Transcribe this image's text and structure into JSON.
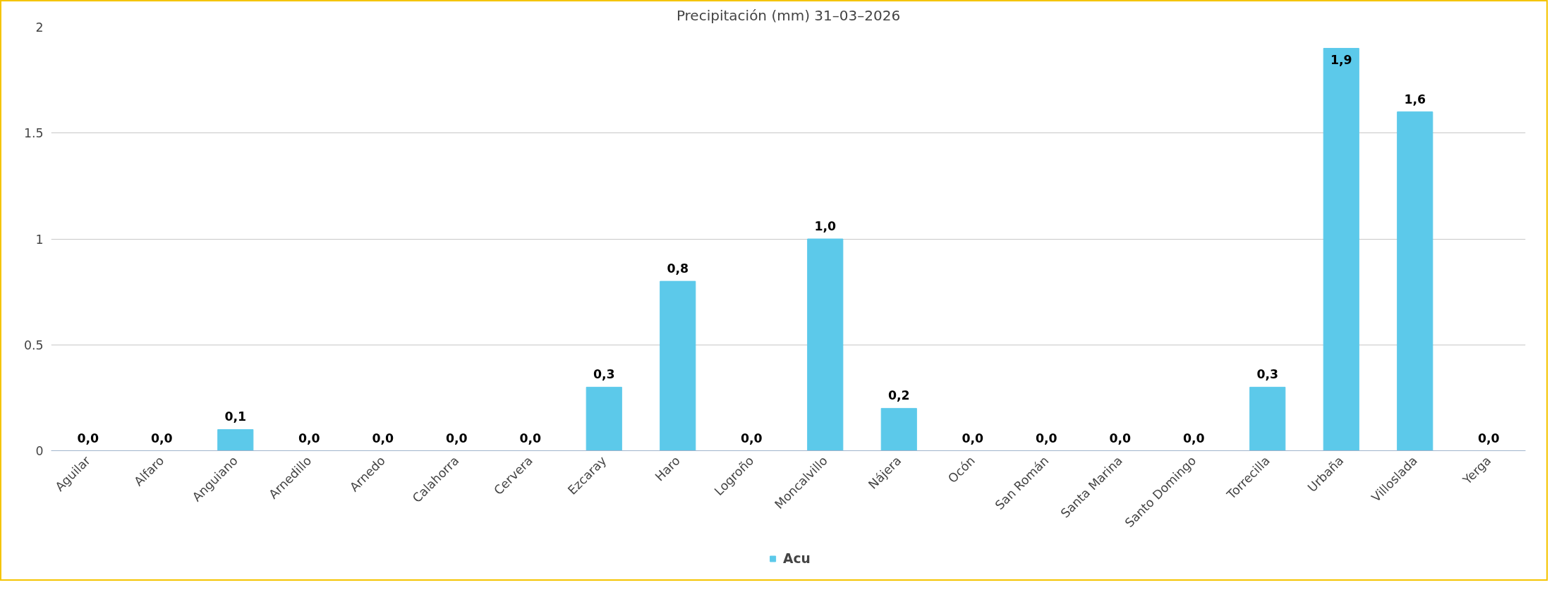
{
  "chart_data": {
    "type": "bar",
    "title": "Precipitación (mm) 31–03–2026",
    "categories": [
      "Aguilar",
      "Alfaro",
      "Anguiano",
      "Arnedillo",
      "Arnedo",
      "Calahorra",
      "Cervera",
      "Ezcaray",
      "Haro",
      "Logroño",
      "Moncalvillo",
      "Nájera",
      "Ocón",
      "San Román",
      "Santa Marina",
      "Santo Domingo",
      "Torrecilla",
      "Urbaña",
      "Villoslada",
      "Yerga"
    ],
    "series": [
      {
        "name": "Acu",
        "color": "#5cc9ea",
        "values": [
          0,
          0,
          0.1,
          0,
          0,
          0,
          0,
          0.3,
          0.8,
          0,
          1.0,
          0.2,
          0,
          0,
          0,
          0,
          0.3,
          1.9,
          1.6,
          0
        ],
        "value_labels": [
          "0,0",
          "0,0",
          "0,1",
          "0,0",
          "0,0",
          "0,0",
          "0,0",
          "0,3",
          "0,8",
          "0,0",
          "1,0",
          "0,2",
          "0,0",
          "0,0",
          "0,0",
          "0,0",
          "0,3",
          "1,9",
          "1,6",
          "0,0"
        ]
      }
    ],
    "ylim": [
      0,
      2
    ],
    "yticks": [
      0,
      0.5,
      1,
      1.5,
      2
    ],
    "grid": "y",
    "legend": "bottom"
  }
}
